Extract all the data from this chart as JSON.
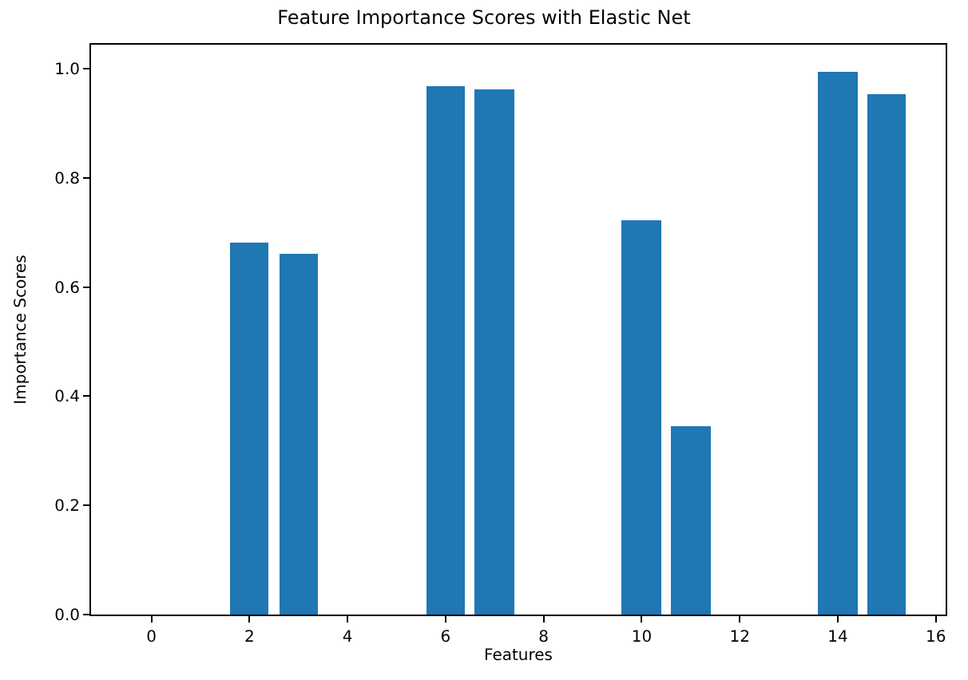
{
  "chart_data": {
    "type": "bar",
    "title": "Feature Importance Scores with Elastic Net",
    "xlabel": "Features",
    "ylabel": "Importance Scores",
    "x": [
      0,
      1,
      2,
      3,
      4,
      5,
      6,
      7,
      8,
      9,
      10,
      11,
      12,
      13,
      14,
      15
    ],
    "series": [
      {
        "color": "#1f77b4",
        "values": [
          0,
          0,
          0.68,
          0.662,
          0,
          0,
          0.967,
          0.963,
          0,
          0,
          0.723,
          0.344,
          0,
          0,
          0.995,
          0.954
        ]
      }
    ],
    "xlim": [
      -1.23,
      16.2
    ],
    "xticks": [
      0,
      2,
      4,
      6,
      8,
      10,
      12,
      14,
      16
    ],
    "ylim": [
      0,
      1.044
    ],
    "yticks": [
      {
        "value": 0,
        "label": "0.0"
      },
      0.2,
      0.4,
      0.6,
      0.8,
      {
        "value": 1,
        "label": "1.0"
      }
    ]
  }
}
